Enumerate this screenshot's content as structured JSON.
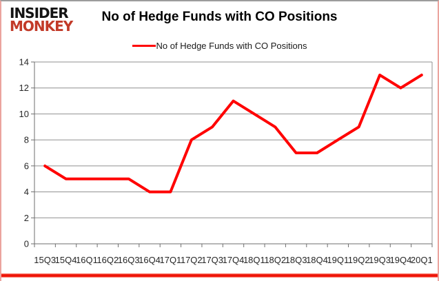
{
  "logo": {
    "line1": "INSIDER",
    "line2": "MONKEY"
  },
  "title": "No of Hedge Funds with CO Positions",
  "legend": {
    "label": "No of Hedge Funds with CO Positions",
    "color": "#ff0000"
  },
  "colors": {
    "logo_red": "#c23a28",
    "series_red": "#ff0000",
    "gridline": "#8f8f8f",
    "axis": "#6e6e6e",
    "tick_label": "#262626",
    "frame_side": "#eba49e",
    "frame_top": "#9c9c9c",
    "frame_bottom": "#ed1607"
  },
  "chart_data": {
    "type": "line",
    "title": "No of Hedge Funds with CO Positions",
    "categories": [
      "15Q3",
      "15Q4",
      "16Q1",
      "16Q2",
      "16Q3",
      "16Q4",
      "17Q1",
      "17Q2",
      "17Q3",
      "17Q4",
      "18Q1",
      "18Q2",
      "18Q3",
      "18Q4",
      "19Q1",
      "19Q2",
      "19Q3",
      "19Q4",
      "20Q1"
    ],
    "series": [
      {
        "name": "No of Hedge Funds with CO Positions",
        "color": "#ff0000",
        "values": [
          6,
          5,
          5,
          5,
          5,
          4,
          4,
          8,
          9,
          11,
          10,
          9,
          7,
          7,
          8,
          9,
          13,
          12,
          13
        ]
      }
    ],
    "xlabel": "",
    "ylabel": "",
    "ylim": [
      0,
      14
    ],
    "ytick_step": 2,
    "grid": true,
    "legend_position": "top-center"
  }
}
